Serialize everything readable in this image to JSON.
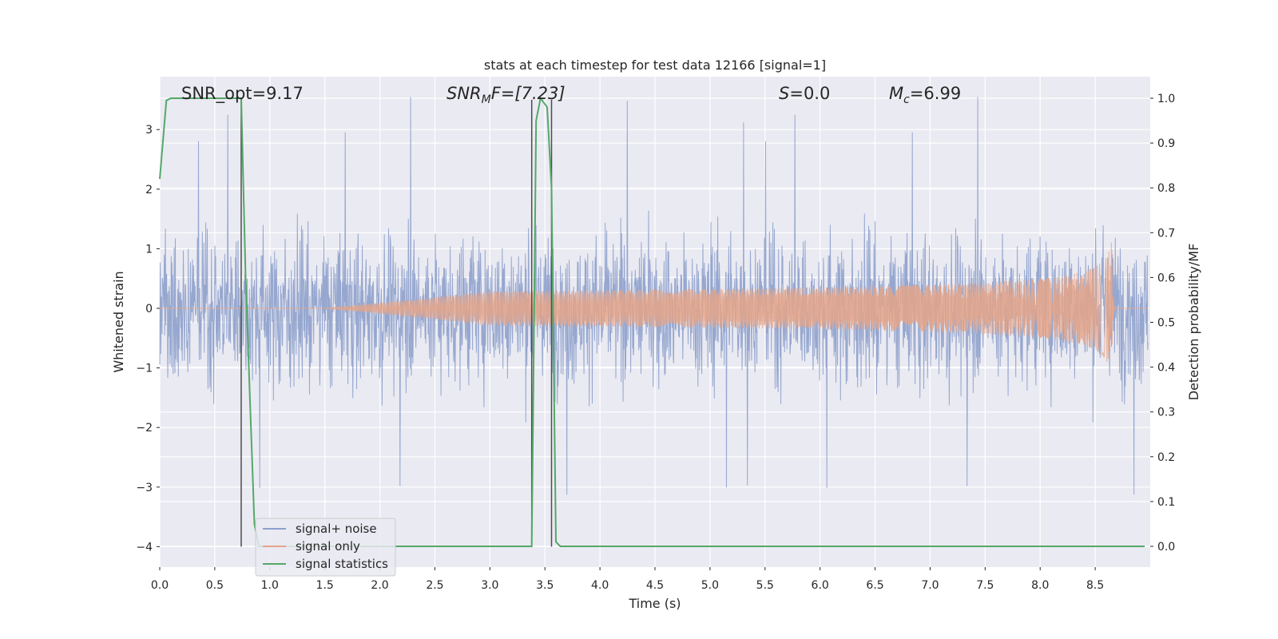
{
  "chart_data": {
    "type": "line",
    "title": "stats at each timestep for test data 12166 [signal=1]",
    "xlabel": "Time (s)",
    "ylabel": "Whitened strain",
    "y2label": "Detection probability/MF",
    "xlim": [
      0.0,
      9.0
    ],
    "ylim": [
      -4.35,
      3.9
    ],
    "y2lim": [
      -0.05,
      1.05
    ],
    "xticks": [
      "0.0",
      "0.5",
      "1.0",
      "1.5",
      "2.0",
      "2.5",
      "3.0",
      "3.5",
      "4.0",
      "4.5",
      "5.0",
      "5.5",
      "6.0",
      "6.5",
      "7.0",
      "7.5",
      "8.0",
      "8.5"
    ],
    "yticks": [
      "3",
      "2",
      "1",
      "0",
      "−1",
      "−2",
      "−3",
      "−4"
    ],
    "y2ticks": [
      "1.0",
      "0.9",
      "0.8",
      "0.7",
      "0.6",
      "0.5",
      "0.4",
      "0.3",
      "0.2",
      "0.1",
      "0.0"
    ],
    "grid": true,
    "legend_position": "lower-left",
    "annotations": {
      "snr_opt": "SNR_opt=9.17",
      "snr_mf_main": "SNR",
      "snr_mf_sub": "M",
      "snr_mf_rest": "F=[7.23]",
      "s_main": "S",
      "s_rest": "=0.0",
      "mc_main": "M",
      "mc_sub": "c",
      "mc_rest": "=6.99"
    },
    "vertical_markers": [
      {
        "x": 0.74,
        "y_from": -4.0,
        "y_to": 3.5
      },
      {
        "x": 3.38,
        "y_from": -4.0,
        "y_to": 3.5
      },
      {
        "x": 3.56,
        "y_from": -4.0,
        "y_to": 3.5
      }
    ],
    "series": [
      {
        "name": "signal+ noise",
        "color": "#8da0cb",
        "description": "dense noise trace spanning roughly -2.5 to 2.5 whitened strain with spikes to about 3.5 and -3.9",
        "noise_std": 0.95,
        "noise_max": 3.55,
        "noise_min": -3.95
      },
      {
        "name": "signal only",
        "color": "#e5a588",
        "chirp_start": 3.0,
        "chirp_peak_x": 8.65,
        "chirp_peak_amplitude": 1.2,
        "chirp_end": 8.68
      },
      {
        "name": "signal statistics",
        "color": "#55a868",
        "axis": "right",
        "x": [
          0.0,
          0.06,
          0.1,
          0.2,
          0.5,
          0.7,
          0.74,
          0.78,
          0.86,
          0.9,
          1.0,
          2.0,
          3.0,
          3.38,
          3.42,
          3.46,
          3.52,
          3.56,
          3.6,
          3.64,
          3.72,
          4.0,
          5.0,
          6.0,
          7.0,
          8.0,
          8.5,
          8.95
        ],
        "values": [
          0.82,
          0.995,
          1.0,
          1.0,
          1.0,
          1.0,
          1.0,
          0.6,
          0.05,
          0.0,
          0.0,
          0.0,
          0.0,
          0.0,
          0.95,
          1.0,
          0.98,
          0.8,
          0.01,
          0.0,
          0.0,
          0.0,
          0.0,
          0.0,
          0.0,
          0.0,
          0.0,
          0.0
        ]
      }
    ]
  }
}
